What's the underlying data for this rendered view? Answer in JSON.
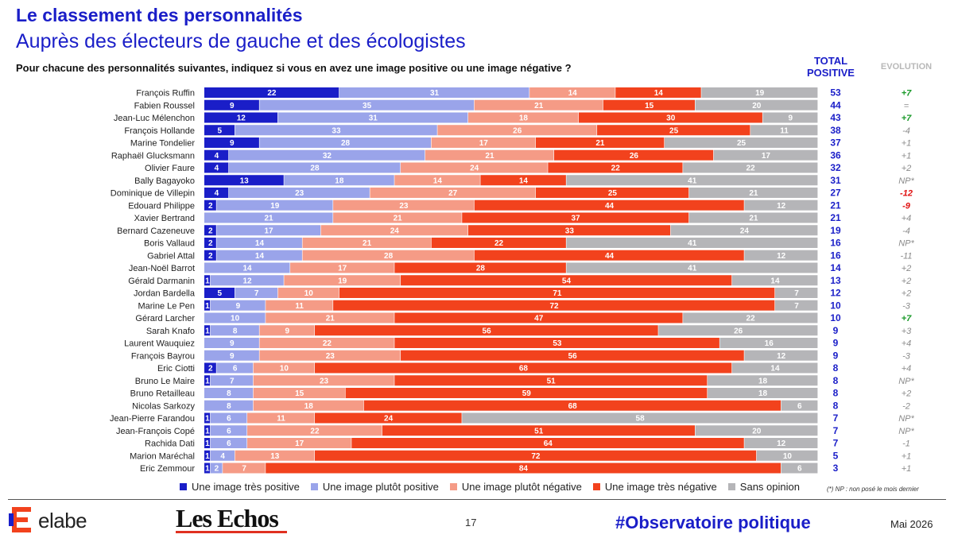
{
  "header": {
    "title": "Le classement des personnalités",
    "subtitle": "Auprès des électeurs de gauche et des écologistes",
    "question": "Pour chacune des personnalités suivantes, indiquez si vous en avez une image positive ou une image négative ?",
    "total_label": "TOTAL POSITIVE",
    "evolution_label": "EVOLUTION"
  },
  "chart_data": {
    "type": "bar",
    "orientation": "horizontal-stacked-100",
    "xlim": [
      0,
      100
    ],
    "legend_placement": "bottom",
    "grid": false,
    "categories": [
      "François Ruffin",
      "Fabien Roussel",
      "Jean-Luc Mélenchon",
      "François Hollande",
      "Marine Tondelier",
      "Raphaël Glucksmann",
      "Olivier Faure",
      "Bally Bagayoko",
      "Dominique de Villepin",
      "Edouard Philippe",
      "Xavier Bertrand",
      "Bernard Cazeneuve",
      "Boris Vallaud",
      "Gabriel Attal",
      "Jean-Noël Barrot",
      "Gérald Darmanin",
      "Jordan Bardella",
      "Marine Le Pen",
      "Gérard Larcher",
      "Sarah Knafo",
      "Laurent Wauquiez",
      "François Bayrou",
      "Eric Ciotti",
      "Bruno Le Maire",
      "Bruno Retailleau",
      "Nicolas Sarkozy",
      "Jean-Pierre Farandou",
      "Jean-François Copé",
      "Rachida Dati",
      "Marion Maréchal",
      "Eric Zemmour"
    ],
    "series": [
      {
        "name": "Une image très positive",
        "color": "#1a1ec8",
        "values": [
          22,
          9,
          12,
          5,
          9,
          4,
          4,
          13,
          4,
          2,
          0,
          2,
          2,
          2,
          0,
          1,
          5,
          1,
          0,
          1,
          0,
          0,
          2,
          1,
          0,
          0,
          1,
          1,
          1,
          1,
          1
        ]
      },
      {
        "name": "Une image plutôt positive",
        "color": "#9aa4ea",
        "values": [
          31,
          35,
          31,
          33,
          28,
          32,
          28,
          18,
          23,
          19,
          21,
          17,
          14,
          14,
          14,
          12,
          7,
          9,
          10,
          8,
          9,
          9,
          6,
          7,
          8,
          8,
          6,
          6,
          6,
          4,
          2
        ]
      },
      {
        "name": "Une image plutôt négative",
        "color": "#f59b86",
        "values": [
          14,
          21,
          18,
          26,
          17,
          21,
          24,
          14,
          27,
          23,
          21,
          24,
          21,
          28,
          17,
          19,
          10,
          11,
          21,
          9,
          22,
          23,
          10,
          23,
          15,
          18,
          11,
          22,
          17,
          13,
          7
        ]
      },
      {
        "name": "Une image très négative",
        "color": "#f2421d",
        "values": [
          14,
          15,
          30,
          25,
          21,
          26,
          22,
          14,
          25,
          44,
          37,
          33,
          22,
          44,
          28,
          54,
          71,
          72,
          47,
          56,
          53,
          56,
          68,
          51,
          59,
          68,
          24,
          51,
          64,
          72,
          84
        ]
      },
      {
        "name": "Sans opinion",
        "color": "#b5b5b8",
        "values": [
          19,
          20,
          9,
          11,
          25,
          17,
          22,
          41,
          21,
          12,
          21,
          24,
          41,
          12,
          41,
          14,
          7,
          7,
          22,
          26,
          16,
          12,
          14,
          18,
          18,
          6,
          58,
          20,
          12,
          10,
          6
        ]
      }
    ],
    "total_positive": [
      53,
      44,
      43,
      38,
      37,
      36,
      32,
      31,
      27,
      21,
      21,
      19,
      16,
      16,
      14,
      13,
      12,
      10,
      10,
      9,
      9,
      9,
      8,
      8,
      8,
      8,
      7,
      7,
      7,
      5,
      3
    ],
    "evolution": [
      "+7",
      "=",
      "+7",
      "-4",
      "+1",
      "+1",
      "+2",
      "NP*",
      "-12",
      "-9",
      "+4",
      "-4",
      "NP*",
      "-11",
      "+2",
      "+2",
      "+2",
      "-3",
      "+7",
      "+3",
      "+4",
      "-3",
      "+4",
      "NP*",
      "+2",
      "-2",
      "NP*",
      "NP*",
      "-1",
      "+1",
      "+1"
    ]
  },
  "colors": {
    "brand_blue": "#1a1ec8",
    "evo_positive": "#1a9a2a",
    "evo_negative": "#e01010",
    "evo_neutral": "#8a8a8a"
  },
  "footer": {
    "note": "(*) NP : non posé le mois dernier",
    "brand": "elabe",
    "partner": "Les Echos",
    "page": "17",
    "hashtag": "#Observatoire politique",
    "date": "Mai 2026"
  }
}
